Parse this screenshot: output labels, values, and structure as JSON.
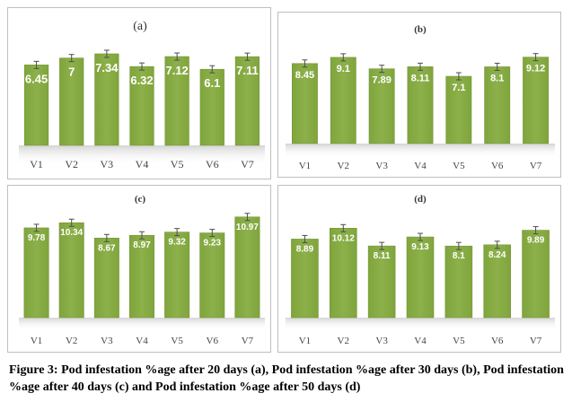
{
  "chart_data": [
    {
      "type": "bar",
      "title": "(a)",
      "categories": [
        "V1",
        "V2",
        "V3",
        "V4",
        "V5",
        "V6",
        "V7"
      ],
      "values": [
        6.45,
        7,
        7.34,
        6.32,
        7.12,
        6.1,
        7.11
      ],
      "value_labels": [
        "6.45",
        "7",
        "7.34",
        "6.32",
        "7.12",
        "6.1",
        "7.11"
      ],
      "ylim": [
        0,
        10
      ],
      "error_bars": true,
      "grid": false,
      "colors": {
        "bar": "#8db04a",
        "bar_edge": "#76963a",
        "label": "#ffffff"
      }
    },
    {
      "type": "bar",
      "title": "(b)",
      "categories": [
        "V1",
        "V2",
        "V3",
        "V4",
        "V5",
        "V6",
        "V7"
      ],
      "values": [
        8.45,
        9.1,
        7.89,
        8.11,
        7.1,
        8.1,
        9.12
      ],
      "value_labels": [
        "8.45",
        "9.1",
        "7.89",
        "8.11",
        "7.1",
        "8.1",
        "9.12"
      ],
      "ylim": [
        0,
        12.5
      ],
      "error_bars": true,
      "grid": false,
      "colors": {
        "bar": "#8db04a",
        "bar_edge": "#76963a",
        "label": "#ffffff"
      }
    },
    {
      "type": "bar",
      "title": "(c)",
      "categories": [
        "V1",
        "V2",
        "V3",
        "V4",
        "V5",
        "V6",
        "V7"
      ],
      "values": [
        9.78,
        10.34,
        8.67,
        8.97,
        9.32,
        9.23,
        10.97
      ],
      "value_labels": [
        "9.78",
        "10.34",
        "8.67",
        "8.97",
        "9.32",
        "9.23",
        "10.97"
      ],
      "ylim": [
        0,
        13
      ],
      "error_bars": true,
      "grid": false,
      "colors": {
        "bar": "#8db04a",
        "bar_edge": "#76963a",
        "label": "#ffffff"
      }
    },
    {
      "type": "bar",
      "title": "(d)",
      "categories": [
        "V1",
        "V2",
        "V3",
        "V4",
        "V5",
        "V6",
        "V7"
      ],
      "values": [
        8.89,
        10.12,
        8.11,
        9.13,
        8.1,
        8.24,
        9.89
      ],
      "value_labels": [
        "8.89",
        "10.12",
        "8.11",
        "9.13",
        "8.1",
        "8.24",
        "9.89"
      ],
      "ylim": [
        0,
        13.5
      ],
      "error_bars": true,
      "grid": false,
      "colors": {
        "bar": "#8db04a",
        "bar_edge": "#76963a",
        "label": "#ffffff"
      }
    }
  ],
  "caption": "Figure 3: Pod infestation %age after 20 days (a), Pod infestation %age after 30 days (b), Pod infestation %age after 40 days (c) and Pod infestation %age after 50 days (d)"
}
